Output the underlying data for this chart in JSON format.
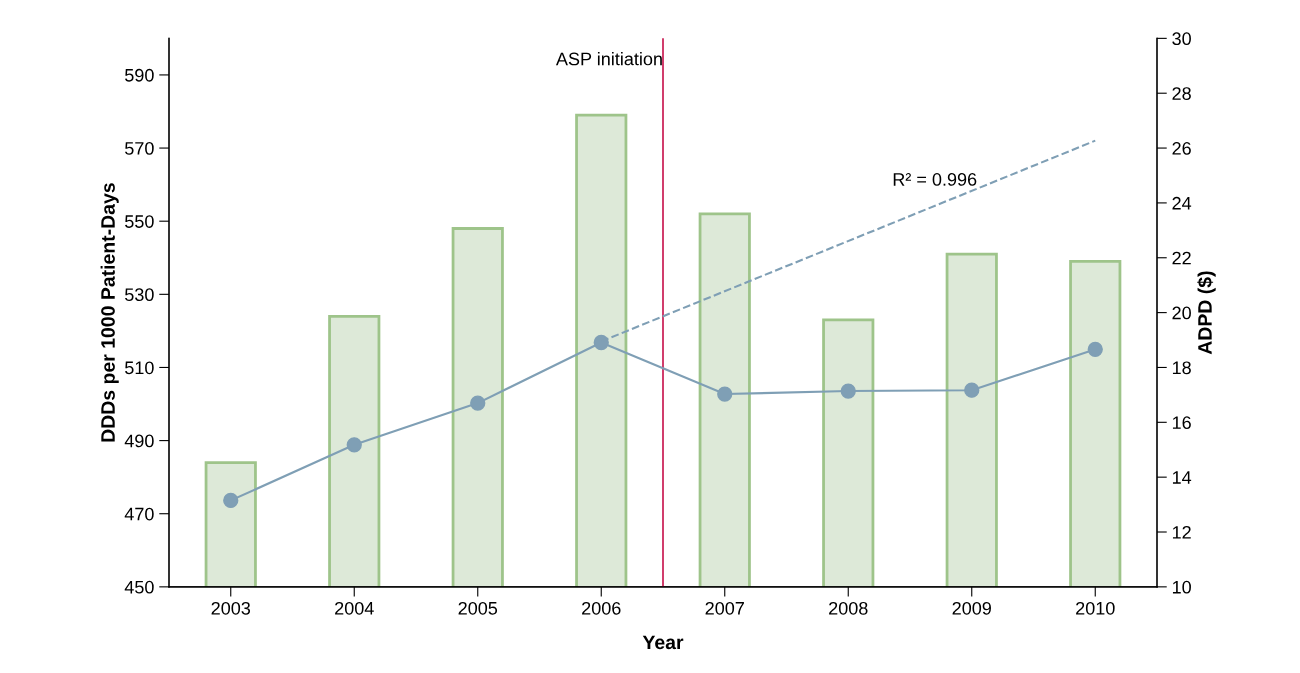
{
  "chart_data": {
    "type": "bar",
    "xlabel": "Year",
    "ylabel": "DDDs per 1000 Patient-Days",
    "y2label": "ADPD ($)",
    "x": [
      2003,
      2004,
      2005,
      2006,
      2007,
      2008,
      2009,
      2010
    ],
    "xlim": [
      2002.5,
      2010.5
    ],
    "xticks": [
      2003,
      2004,
      2005,
      2006,
      2007,
      2008,
      2009,
      2010
    ],
    "ylim": [
      450,
      600
    ],
    "yticks": [
      450,
      470,
      490,
      510,
      530,
      550,
      570,
      590
    ],
    "y2lim": [
      10,
      30
    ],
    "y2ticks": [
      10,
      12,
      14,
      16,
      18,
      20,
      22,
      24,
      26,
      28,
      30
    ],
    "series": [
      {
        "color": "#dde9d8",
        "values": [
          484,
          524,
          548,
          579,
          552,
          523,
          541,
          539
        ]
      },
      {
        "type": "line",
        "axis": "y2",
        "color": "#7f9fb5",
        "marker": "circle",
        "line_style": "solid",
        "values": [
          13.15,
          15.18,
          16.7,
          18.91,
          17.03,
          17.14,
          17.17,
          18.66
        ]
      },
      {
        "type": "line",
        "axis": "y2",
        "color": "#7f9fb5",
        "marker": "none",
        "line_style": "dashed",
        "x": [
          2006,
          2010
        ],
        "values": [
          18.95,
          26.27
        ]
      }
    ],
    "ref_lines": [
      {
        "axis": "x",
        "value": 2006.5,
        "label": "ASP initiation",
        "color": "#c8174f"
      }
    ],
    "annotations": [
      "R² = 0.996"
    ],
    "grid": false,
    "legend": false
  }
}
